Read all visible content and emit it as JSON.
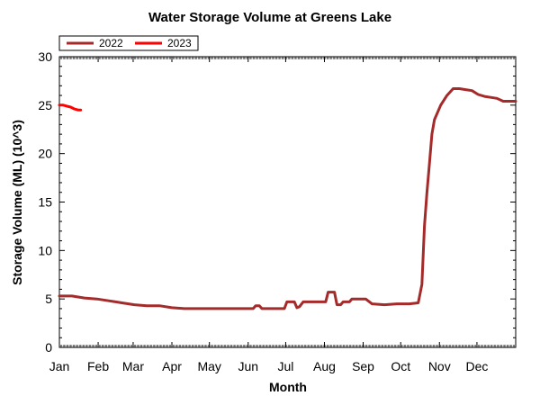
{
  "chart_data": {
    "type": "line",
    "title": "Water Storage Volume at Greens Lake",
    "xlabel": "Month",
    "ylabel": "Storage Volume (ML) (10^3)",
    "xlim": [
      0,
      365
    ],
    "ylim": [
      0,
      30
    ],
    "y_ticks": [
      0,
      5,
      10,
      15,
      20,
      25,
      30
    ],
    "x_ticks": [
      {
        "label": "Jan",
        "day": 0
      },
      {
        "label": "Feb",
        "day": 31
      },
      {
        "label": "Mar",
        "day": 59
      },
      {
        "label": "Apr",
        "day": 90
      },
      {
        "label": "May",
        "day": 120
      },
      {
        "label": "Jun",
        "day": 151
      },
      {
        "label": "Jul",
        "day": 181
      },
      {
        "label": "Aug",
        "day": 212
      },
      {
        "label": "Sep",
        "day": 243
      },
      {
        "label": "Oct",
        "day": 273
      },
      {
        "label": "Nov",
        "day": 304
      },
      {
        "label": "Dec",
        "day": 334
      }
    ],
    "grid": false,
    "legend_position": "top-left",
    "series": [
      {
        "name": "2022",
        "color": "#a52a2a",
        "points": [
          [
            0,
            5.3
          ],
          [
            10,
            5.3
          ],
          [
            20,
            5.1
          ],
          [
            30,
            5.0
          ],
          [
            40,
            4.8
          ],
          [
            50,
            4.6
          ],
          [
            60,
            4.4
          ],
          [
            70,
            4.3
          ],
          [
            80,
            4.3
          ],
          [
            90,
            4.1
          ],
          [
            100,
            4.0
          ],
          [
            110,
            4.0
          ],
          [
            120,
            4.0
          ],
          [
            130,
            4.0
          ],
          [
            140,
            4.0
          ],
          [
            150,
            4.0
          ],
          [
            155,
            4.0
          ],
          [
            157,
            4.3
          ],
          [
            160,
            4.3
          ],
          [
            162,
            4.0
          ],
          [
            175,
            4.0
          ],
          [
            180,
            4.0
          ],
          [
            182,
            4.7
          ],
          [
            188,
            4.7
          ],
          [
            190,
            4.1
          ],
          [
            192,
            4.2
          ],
          [
            195,
            4.7
          ],
          [
            205,
            4.7
          ],
          [
            213,
            4.7
          ],
          [
            215,
            5.7
          ],
          [
            220,
            5.7
          ],
          [
            222,
            4.4
          ],
          [
            225,
            4.4
          ],
          [
            227,
            4.7
          ],
          [
            232,
            4.7
          ],
          [
            234,
            5.0
          ],
          [
            245,
            5.0
          ],
          [
            250,
            4.5
          ],
          [
            260,
            4.4
          ],
          [
            270,
            4.5
          ],
          [
            280,
            4.5
          ],
          [
            287,
            4.6
          ],
          [
            290,
            6.5
          ],
          [
            292,
            12.5
          ],
          [
            294,
            16.0
          ],
          [
            296,
            19.0
          ],
          [
            298,
            22.0
          ],
          [
            300,
            23.5
          ],
          [
            305,
            25.0
          ],
          [
            310,
            26.0
          ],
          [
            315,
            26.7
          ],
          [
            320,
            26.7
          ],
          [
            325,
            26.6
          ],
          [
            330,
            26.5
          ],
          [
            335,
            26.1
          ],
          [
            340,
            25.9
          ],
          [
            345,
            25.8
          ],
          [
            350,
            25.7
          ],
          [
            355,
            25.4
          ],
          [
            360,
            25.4
          ],
          [
            365,
            25.4
          ]
        ]
      },
      {
        "name": "2023",
        "color": "#ff0000",
        "points": [
          [
            0,
            25.0
          ],
          [
            3,
            25.0
          ],
          [
            6,
            24.9
          ],
          [
            9,
            24.8
          ],
          [
            12,
            24.6
          ],
          [
            15,
            24.5
          ],
          [
            17,
            24.5
          ]
        ]
      }
    ]
  }
}
